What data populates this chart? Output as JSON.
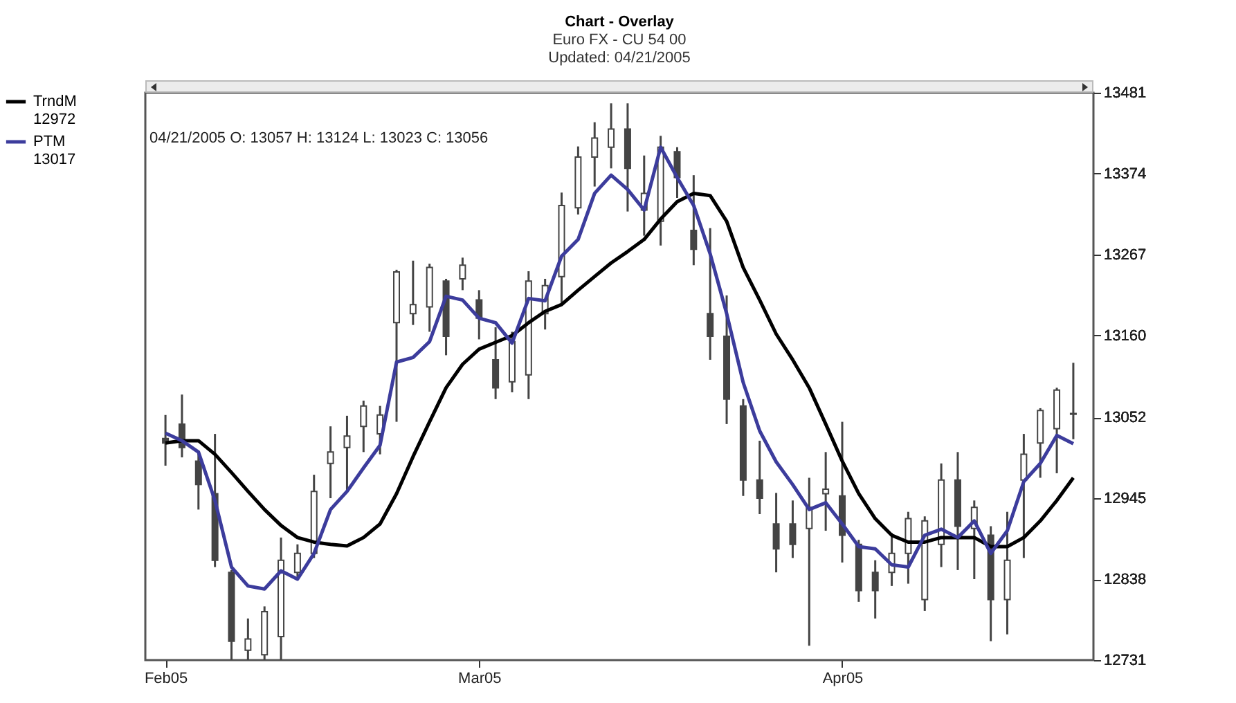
{
  "chart_data": {
    "type": "candlestick",
    "title": "Chart - Overlay",
    "subtitle": "Euro FX - CU 54 00",
    "annotations": [
      "Updated: 04/21/2005",
      "04/21/2005  O: 13057  H: 13124  L: 13023  C: 13056"
    ],
    "categories": [
      "Feb05",
      null,
      null,
      null,
      null,
      null,
      null,
      null,
      null,
      null,
      null,
      null,
      null,
      null,
      null,
      null,
      null,
      null,
      null,
      "Mar05",
      null,
      null,
      null,
      null,
      null,
      null,
      null,
      null,
      null,
      null,
      null,
      null,
      null,
      null,
      null,
      null,
      null,
      null,
      null,
      null,
      null,
      "Apr05",
      null,
      null,
      null,
      null,
      null,
      null,
      null,
      null,
      null,
      null,
      null,
      null,
      null,
      null
    ],
    "ohlc": [
      [
        13024,
        13055,
        12988,
        13018
      ],
      [
        13043,
        13082,
        12999,
        13012
      ],
      [
        12994,
        13006,
        12930,
        12963
      ],
      [
        12951,
        13030,
        12854,
        12863
      ],
      [
        12847,
        12850,
        12731,
        12756
      ],
      [
        12744,
        12786,
        12731,
        12759
      ],
      [
        12738,
        12802,
        12731,
        12795
      ],
      [
        12762,
        12893,
        12731,
        12863
      ],
      [
        12847,
        12884,
        12841,
        12872
      ],
      [
        12872,
        12976,
        12866,
        12954
      ],
      [
        12991,
        13040,
        12945,
        13006
      ],
      [
        13012,
        13054,
        12954,
        13027
      ],
      [
        13040,
        13074,
        13006,
        13067
      ],
      [
        13030,
        13067,
        13003,
        13055
      ],
      [
        13177,
        13247,
        13046,
        13244
      ],
      [
        13189,
        13259,
        13174,
        13201
      ],
      [
        13198,
        13255,
        13165,
        13250
      ],
      [
        13232,
        13235,
        13134,
        13159
      ],
      [
        13235,
        13263,
        13220,
        13253
      ],
      [
        13207,
        13220,
        13155,
        13183
      ],
      [
        13128,
        13171,
        13076,
        13091
      ],
      [
        13099,
        13165,
        13085,
        13152
      ],
      [
        13108,
        13245,
        13076,
        13232
      ],
      [
        13189,
        13235,
        13168,
        13226
      ],
      [
        13238,
        13349,
        13201,
        13332
      ],
      [
        13329,
        13410,
        13320,
        13396
      ],
      [
        13396,
        13442,
        13357,
        13421
      ],
      [
        13409,
        13467,
        13381,
        13433
      ],
      [
        13433,
        13467,
        13324,
        13381
      ],
      [
        13326,
        13398,
        13292,
        13348
      ],
      [
        13311,
        13424,
        13279,
        13409
      ],
      [
        13403,
        13409,
        13342,
        13369
      ],
      [
        13299,
        13372,
        13253,
        13274
      ],
      [
        13189,
        13302,
        13128,
        13159
      ],
      [
        13159,
        13213,
        13043,
        13076
      ],
      [
        13067,
        13076,
        12948,
        12969
      ],
      [
        12969,
        13021,
        12924,
        12945
      ],
      [
        12911,
        12952,
        12847,
        12878
      ],
      [
        12911,
        12942,
        12866,
        12884
      ],
      [
        12905,
        12972,
        12750,
        12933
      ],
      [
        12951,
        13006,
        12902,
        12957
      ],
      [
        12948,
        13046,
        12860,
        12896
      ],
      [
        12884,
        12890,
        12808,
        12823
      ],
      [
        12847,
        12863,
        12786,
        12823
      ],
      [
        12847,
        12899,
        12829,
        12872
      ],
      [
        12872,
        12927,
        12832,
        12918
      ],
      [
        12811,
        12921,
        12796,
        12915
      ],
      [
        12884,
        12991,
        12854,
        12969
      ],
      [
        12969,
        13006,
        12850,
        12908
      ],
      [
        12905,
        12942,
        12838,
        12933
      ],
      [
        12896,
        12908,
        12756,
        12811
      ],
      [
        12811,
        12927,
        12765,
        12863
      ],
      [
        12969,
        13030,
        12866,
        13003
      ],
      [
        13018,
        13064,
        12972,
        13061
      ],
      [
        13037,
        13091,
        12978,
        13088
      ],
      [
        13057,
        13124,
        13023,
        13056
      ]
    ],
    "series": [
      {
        "name": "TrndM 12972",
        "type": "line",
        "color": "#000000",
        "values": [
          13018,
          13021,
          13021,
          13003,
          12979,
          12954,
          12930,
          12909,
          12893,
          12887,
          12884,
          12882,
          12893,
          12911,
          12951,
          13000,
          13046,
          13091,
          13122,
          13142,
          13151,
          13160,
          13177,
          13192,
          13201,
          13220,
          13238,
          13256,
          13271,
          13287,
          13314,
          13337,
          13348,
          13345,
          13311,
          13250,
          13207,
          13162,
          13128,
          13091,
          13043,
          12994,
          12951,
          12918,
          12896,
          12887,
          12887,
          12893,
          12893,
          12893,
          12881,
          12881,
          12893,
          12915,
          12942,
          12972
        ]
      },
      {
        "name": "PTM 13017",
        "type": "line",
        "color": "#3c3c9c",
        "values": [
          13031,
          13021,
          13006,
          12942,
          12854,
          12829,
          12825,
          12849,
          12838,
          12872,
          12930,
          12954,
          12985,
          13015,
          13125,
          13131,
          13152,
          13212,
          13207,
          13183,
          13177,
          13150,
          13209,
          13206,
          13265,
          13287,
          13348,
          13372,
          13353,
          13326,
          13409,
          13369,
          13332,
          13268,
          13189,
          13098,
          13034,
          12993,
          12963,
          12930,
          12939,
          12911,
          12881,
          12878,
          12857,
          12854,
          12896,
          12904,
          12893,
          12915,
          12872,
          12902,
          12967,
          12991,
          13028,
          13017
        ]
      }
    ],
    "ylim": [
      12731,
      13481
    ],
    "yticks": [
      13481,
      13374,
      13267,
      13160,
      13052,
      12945,
      12838,
      12731
    ],
    "legend": "top left"
  }
}
